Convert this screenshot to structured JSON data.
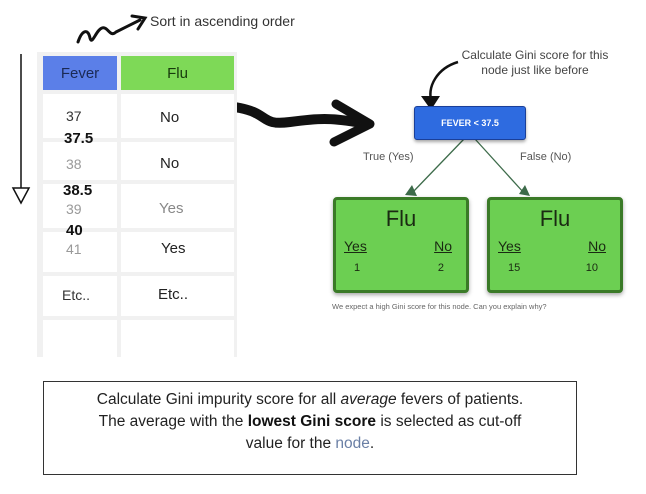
{
  "sort_label": "Sort in ascending order",
  "table": {
    "headers": {
      "fever": "Fever",
      "flu": "Flu"
    },
    "fever_values": [
      "37",
      "38",
      "39",
      "41",
      "Etc.."
    ],
    "averages": [
      "37.5",
      "38.5",
      "40"
    ],
    "flu_values": [
      "No",
      "No",
      "Yes",
      "Yes",
      "Etc.."
    ]
  },
  "node": {
    "label": "FEVER < 37.5",
    "note": "Calculate Gini score for this node just like before"
  },
  "branches": {
    "true": "True (Yes)",
    "false": "False (No)"
  },
  "leaves": [
    {
      "title": "Flu",
      "yes_label": "Yes",
      "no_label": "No",
      "yes": "1",
      "no": "2"
    },
    {
      "title": "Flu",
      "yes_label": "Yes",
      "no_label": "No",
      "yes": "15",
      "no": "10"
    }
  ],
  "expectation": "We expect a high Gini score for this node. Can you explain why?",
  "summary": {
    "l1_a": "Calculate Gini impurity score for all ",
    "l1_b": "average",
    "l1_c": " fevers of patients.",
    "l2_a": "The average with the ",
    "l2_b": "lowest Gini score",
    "l2_c": " is selected as cut-off",
    "l3_a": "value for the ",
    "l3_b": "node",
    "l3_c": "."
  }
}
